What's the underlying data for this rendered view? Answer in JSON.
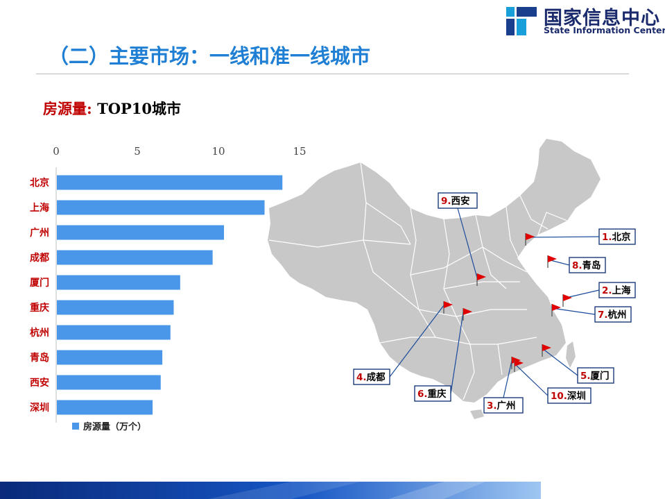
{
  "logo": {
    "cn": "国家信息中心",
    "en": "State Information Center"
  },
  "title": "（二）主要市场：一线和准一线城市",
  "subtitle": {
    "red": "房源量:",
    "black": " TOP10城市"
  },
  "chart_data": {
    "type": "bar",
    "orientation": "horizontal",
    "categories": [
      "北京",
      "上海",
      "广州",
      "成都",
      "厦门",
      "重庆",
      "杭州",
      "青岛",
      "西安",
      "深圳"
    ],
    "series": [
      {
        "name": "房源量（万个）",
        "values": [
          13.9,
          12.8,
          10.3,
          9.6,
          7.6,
          7.2,
          7.0,
          6.5,
          6.4,
          5.9
        ],
        "color": "#4a97ea"
      }
    ],
    "xlim": [
      0,
      15
    ],
    "xticks": [
      "0",
      "5",
      "10",
      "15"
    ],
    "axis_position": "top",
    "legend": "bottom-left",
    "category_label_color": "#c00000"
  },
  "map": {
    "fill": "#c8c8c8",
    "border": "#ffffff",
    "flag_color": "#e00000",
    "labels": [
      {
        "rank": "1.",
        "city": "北京"
      },
      {
        "rank": "2.",
        "city": "上海"
      },
      {
        "rank": "3.",
        "city": "广州"
      },
      {
        "rank": "4.",
        "city": "成都"
      },
      {
        "rank": "5.",
        "city": "厦门"
      },
      {
        "rank": "6.",
        "city": "重庆"
      },
      {
        "rank": "7.",
        "city": "杭州"
      },
      {
        "rank": "8.",
        "city": "青岛"
      },
      {
        "rank": "9.",
        "city": "西安"
      },
      {
        "rank": "10.",
        "city": "深圳"
      }
    ]
  }
}
